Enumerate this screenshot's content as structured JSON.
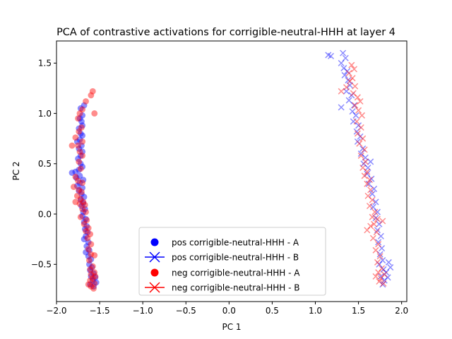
{
  "chart_data": {
    "type": "scatter",
    "title": "PCA of contrastive activations for corrigible-neutral-HHH at layer 4",
    "xlabel": "PC 1",
    "ylabel": "PC 2",
    "xlim": [
      -2.0,
      2.06
    ],
    "ylim": [
      -0.87,
      1.72
    ],
    "xticks": [
      -2.0,
      -1.5,
      -1.0,
      -0.5,
      0.0,
      0.5,
      1.0,
      1.5,
      2.0
    ],
    "xtick_labels": [
      "−2.0",
      "−1.5",
      "−1.0",
      "−0.5",
      "0.0",
      "0.5",
      "1.0",
      "1.5",
      "2.0"
    ],
    "yticks": [
      -0.5,
      0.0,
      0.5,
      1.0,
      1.5
    ],
    "ytick_labels": [
      "−0.5",
      "0.0",
      "0.5",
      "1.0",
      "1.5"
    ],
    "grid": false,
    "legend_position": "bottom-center",
    "colors": {
      "pos": "#0000ff",
      "neg": "#ff0000"
    },
    "series": [
      {
        "name": "pos corrigible-neutral-HHH - A",
        "marker": "circle",
        "color": "#0000ff",
        "points": [
          [
            -1.68,
            1.08
          ],
          [
            -1.72,
            1.05
          ],
          [
            -1.7,
            0.98
          ],
          [
            -1.73,
            0.95
          ],
          [
            -1.71,
            0.92
          ],
          [
            -1.7,
            0.88
          ],
          [
            -1.74,
            0.85
          ],
          [
            -1.72,
            0.8
          ],
          [
            -1.7,
            0.78
          ],
          [
            -1.73,
            0.74
          ],
          [
            -1.76,
            0.72
          ],
          [
            -1.71,
            0.68
          ],
          [
            -1.74,
            0.65
          ],
          [
            -1.7,
            0.62
          ],
          [
            -1.72,
            0.58
          ],
          [
            -1.75,
            0.55
          ],
          [
            -1.72,
            0.5
          ],
          [
            -1.7,
            0.47
          ],
          [
            -1.74,
            0.44
          ],
          [
            -1.78,
            0.42
          ],
          [
            -1.82,
            0.41
          ],
          [
            -1.73,
            0.38
          ],
          [
            -1.77,
            0.36
          ],
          [
            -1.69,
            0.34
          ],
          [
            -1.73,
            0.31
          ],
          [
            -1.76,
            0.28
          ],
          [
            -1.7,
            0.26
          ],
          [
            -1.74,
            0.23
          ],
          [
            -1.71,
            0.2
          ],
          [
            -1.68,
            0.17
          ],
          [
            -1.72,
            0.14
          ],
          [
            -1.69,
            0.11
          ],
          [
            -1.71,
            0.08
          ],
          [
            -1.67,
            0.05
          ],
          [
            -1.69,
            0.02
          ],
          [
            -1.7,
            -0.02
          ],
          [
            -1.66,
            -0.05
          ],
          [
            -1.68,
            -0.08
          ],
          [
            -1.65,
            -0.12
          ],
          [
            -1.67,
            -0.15
          ],
          [
            -1.64,
            -0.18
          ],
          [
            -1.66,
            -0.22
          ],
          [
            -1.68,
            -0.25
          ],
          [
            -1.63,
            -0.28
          ],
          [
            -1.65,
            -0.32
          ],
          [
            -1.62,
            -0.36
          ],
          [
            -1.66,
            -0.38
          ],
          [
            -1.63,
            -0.42
          ],
          [
            -1.6,
            -0.45
          ],
          [
            -1.62,
            -0.5
          ],
          [
            -1.59,
            -0.53
          ],
          [
            -1.61,
            -0.56
          ],
          [
            -1.57,
            -0.59
          ],
          [
            -1.6,
            -0.62
          ],
          [
            -1.55,
            -0.63
          ],
          [
            -1.58,
            -0.66
          ],
          [
            -1.54,
            -0.68
          ],
          [
            -1.61,
            -0.7
          ],
          [
            -1.57,
            -0.72
          ]
        ]
      },
      {
        "name": "pos corrigible-neutral-HHH - B",
        "marker": "x",
        "color": "#0000ff",
        "points": [
          [
            1.15,
            1.58
          ],
          [
            1.18,
            1.57
          ],
          [
            1.32,
            1.6
          ],
          [
            1.35,
            1.55
          ],
          [
            1.3,
            1.5
          ],
          [
            1.33,
            1.45
          ],
          [
            1.37,
            1.42
          ],
          [
            1.34,
            1.38
          ],
          [
            1.38,
            1.33
          ],
          [
            1.4,
            1.28
          ],
          [
            1.36,
            1.22
          ],
          [
            1.42,
            1.18
          ],
          [
            1.39,
            1.13
          ],
          [
            1.45,
            1.08
          ],
          [
            1.3,
            1.06
          ],
          [
            1.43,
            1.02
          ],
          [
            1.47,
            0.98
          ],
          [
            1.44,
            0.92
          ],
          [
            1.5,
            0.88
          ],
          [
            1.48,
            0.82
          ],
          [
            1.52,
            0.77
          ],
          [
            1.49,
            0.72
          ],
          [
            1.55,
            0.65
          ],
          [
            1.53,
            0.6
          ],
          [
            1.58,
            0.56
          ],
          [
            1.56,
            0.5
          ],
          [
            1.61,
            0.46
          ],
          [
            1.64,
            0.52
          ],
          [
            1.6,
            0.4
          ],
          [
            1.65,
            0.35
          ],
          [
            1.62,
            0.3
          ],
          [
            1.68,
            0.25
          ],
          [
            1.66,
            0.2
          ],
          [
            1.7,
            0.12
          ],
          [
            1.67,
            0.07
          ],
          [
            1.72,
            0.02
          ],
          [
            1.7,
            -0.04
          ],
          [
            1.74,
            -0.1
          ],
          [
            1.72,
            -0.16
          ],
          [
            1.76,
            -0.22
          ],
          [
            1.73,
            -0.28
          ],
          [
            1.77,
            -0.34
          ],
          [
            1.75,
            -0.4
          ],
          [
            1.78,
            -0.46
          ],
          [
            1.74,
            -0.5
          ],
          [
            1.79,
            -0.55
          ],
          [
            1.82,
            -0.58
          ],
          [
            1.76,
            -0.62
          ],
          [
            1.8,
            -0.66
          ],
          [
            1.85,
            -0.48
          ],
          [
            1.87,
            -0.53
          ],
          [
            1.84,
            -0.63
          ],
          [
            1.78,
            -0.7
          ]
        ]
      },
      {
        "name": "neg corrigible-neutral-HHH - A",
        "marker": "circle",
        "color": "#ff0000",
        "points": [
          [
            -1.58,
            1.22
          ],
          [
            -1.6,
            1.18
          ],
          [
            -1.66,
            1.12
          ],
          [
            -1.7,
            1.04
          ],
          [
            -1.73,
            1.0
          ],
          [
            -1.56,
            1.0
          ],
          [
            -1.75,
            0.95
          ],
          [
            -1.71,
            0.86
          ],
          [
            -1.74,
            0.82
          ],
          [
            -1.78,
            0.76
          ],
          [
            -1.7,
            0.72
          ],
          [
            -1.75,
            0.68
          ],
          [
            -1.82,
            0.68
          ],
          [
            -1.73,
            0.62
          ],
          [
            -1.7,
            0.58
          ],
          [
            -1.74,
            0.52
          ],
          [
            -1.72,
            0.45
          ],
          [
            -1.78,
            0.37
          ],
          [
            -1.75,
            0.33
          ],
          [
            -1.7,
            0.31
          ],
          [
            -1.8,
            0.27
          ],
          [
            -1.74,
            0.24
          ],
          [
            -1.71,
            0.22
          ],
          [
            -1.76,
            0.18
          ],
          [
            -1.72,
            0.15
          ],
          [
            -1.69,
            0.12
          ],
          [
            -1.73,
            0.1
          ],
          [
            -1.78,
            0.12
          ],
          [
            -1.67,
            0.09
          ],
          [
            -1.7,
            0.05
          ],
          [
            -1.66,
            0.02
          ],
          [
            -1.72,
            -0.03
          ],
          [
            -1.65,
            -0.06
          ],
          [
            -1.68,
            -0.1
          ],
          [
            -1.63,
            -0.14
          ],
          [
            -1.66,
            -0.17
          ],
          [
            -1.61,
            -0.2
          ],
          [
            -1.64,
            -0.24
          ],
          [
            -1.6,
            -0.3
          ],
          [
            -1.63,
            -0.35
          ],
          [
            -1.6,
            -0.4
          ],
          [
            -1.62,
            -0.46
          ],
          [
            -1.58,
            -0.52
          ],
          [
            -1.61,
            -0.55
          ],
          [
            -1.56,
            -0.58
          ],
          [
            -1.6,
            -0.6
          ],
          [
            -1.55,
            -0.62
          ],
          [
            -1.58,
            -0.64
          ],
          [
            -1.61,
            -0.66
          ],
          [
            -1.56,
            -0.69
          ],
          [
            -1.6,
            -0.72
          ],
          [
            -1.57,
            -0.74
          ],
          [
            -1.63,
            -0.7
          ],
          [
            -1.56,
            -0.41
          ]
        ]
      },
      {
        "name": "neg corrigible-neutral-HHH - B",
        "marker": "x",
        "color": "#ff0000",
        "points": [
          [
            1.42,
            1.48
          ],
          [
            1.45,
            1.44
          ],
          [
            1.39,
            1.4
          ],
          [
            1.43,
            1.35
          ],
          [
            1.4,
            1.32
          ],
          [
            1.46,
            1.27
          ],
          [
            1.36,
            1.26
          ],
          [
            1.44,
            1.2
          ],
          [
            1.3,
            1.22
          ],
          [
            1.49,
            1.16
          ],
          [
            1.52,
            1.12
          ],
          [
            1.46,
            1.08
          ],
          [
            1.5,
            1.03
          ],
          [
            1.54,
            0.98
          ],
          [
            1.48,
            0.92
          ],
          [
            1.53,
            0.86
          ],
          [
            1.49,
            0.8
          ],
          [
            1.55,
            0.75
          ],
          [
            1.51,
            0.7
          ],
          [
            1.57,
            0.64
          ],
          [
            1.53,
            0.58
          ],
          [
            1.58,
            0.52
          ],
          [
            1.55,
            0.46
          ],
          [
            1.6,
            0.42
          ],
          [
            1.57,
            0.38
          ],
          [
            1.63,
            0.34
          ],
          [
            1.6,
            0.3
          ],
          [
            1.64,
            0.24
          ],
          [
            1.61,
            0.18
          ],
          [
            1.66,
            0.14
          ],
          [
            1.63,
            0.08
          ],
          [
            1.69,
            0.02
          ],
          [
            1.66,
            -0.03
          ],
          [
            1.72,
            -0.05
          ],
          [
            1.78,
            -0.07
          ],
          [
            1.68,
            -0.1
          ],
          [
            1.64,
            -0.12
          ],
          [
            1.6,
            -0.16
          ],
          [
            1.71,
            -0.18
          ],
          [
            1.67,
            -0.24
          ],
          [
            1.73,
            -0.3
          ],
          [
            1.7,
            -0.36
          ],
          [
            1.75,
            -0.42
          ],
          [
            1.72,
            -0.48
          ],
          [
            1.77,
            -0.54
          ],
          [
            1.73,
            -0.58
          ],
          [
            1.7,
            -0.62
          ],
          [
            1.76,
            -0.64
          ],
          [
            1.8,
            -0.6
          ],
          [
            1.74,
            -0.67
          ],
          [
            1.79,
            -0.69
          ]
        ]
      }
    ]
  }
}
